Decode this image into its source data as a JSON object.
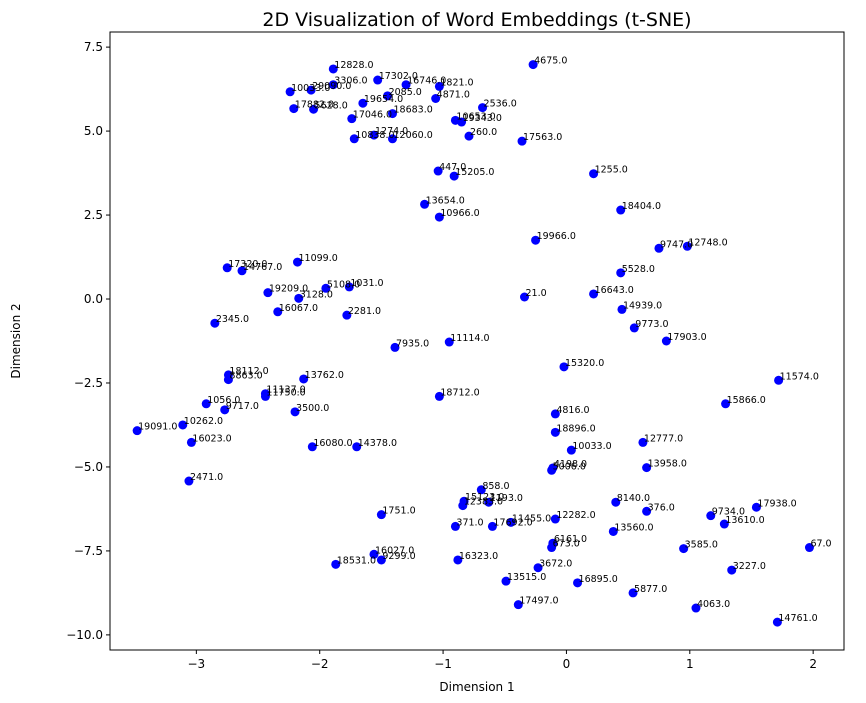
{
  "chart_data": {
    "type": "scatter",
    "title": "2D Visualization of Word Embeddings (t-SNE)",
    "xlabel": "Dimension 1",
    "ylabel": "Dimension 2",
    "xlim": [
      -3.7,
      2.25
    ],
    "ylim": [
      -10.45,
      7.95
    ],
    "x_ticks": [
      -3,
      -2,
      -1,
      0,
      1,
      2
    ],
    "x_tick_labels": [
      "−3",
      "−2",
      "−1",
      "0",
      "1",
      "2"
    ],
    "y_ticks": [
      -10.0,
      -7.5,
      -5.0,
      -2.5,
      0.0,
      2.5,
      5.0,
      7.5
    ],
    "y_tick_labels": [
      "−10.0",
      "−7.5",
      "−5.0",
      "−2.5",
      "0.0",
      "2.5",
      "5.0",
      "7.5"
    ],
    "grid": false,
    "marker_color": "#0000ff",
    "points": [
      {
        "x": -1.89,
        "y": 6.85,
        "label": "12828.0"
      },
      {
        "x": -0.27,
        "y": 6.98,
        "label": "4675.0"
      },
      {
        "x": -1.53,
        "y": 6.52,
        "label": "17302.0"
      },
      {
        "x": -1.3,
        "y": 6.38,
        "label": "16746.0"
      },
      {
        "x": -1.03,
        "y": 6.33,
        "label": "1821.0"
      },
      {
        "x": -1.89,
        "y": 6.38,
        "label": "3306.0"
      },
      {
        "x": -2.07,
        "y": 6.22,
        "label": "29090.0"
      },
      {
        "x": -2.24,
        "y": 6.17,
        "label": "10033.0"
      },
      {
        "x": -1.45,
        "y": 6.05,
        "label": "2085.0"
      },
      {
        "x": -1.06,
        "y": 5.97,
        "label": "4871.0"
      },
      {
        "x": -1.65,
        "y": 5.83,
        "label": "19654.0"
      },
      {
        "x": -0.68,
        "y": 5.7,
        "label": "2536.0"
      },
      {
        "x": -2.21,
        "y": 5.67,
        "label": "17882.0"
      },
      {
        "x": -2.05,
        "y": 5.65,
        "label": "5628.0"
      },
      {
        "x": -1.41,
        "y": 5.52,
        "label": "18683.0"
      },
      {
        "x": -1.74,
        "y": 5.37,
        "label": "17046.0"
      },
      {
        "x": -0.9,
        "y": 5.32,
        "label": "10653.0"
      },
      {
        "x": -0.85,
        "y": 5.27,
        "label": "19343.0"
      },
      {
        "x": -1.56,
        "y": 4.88,
        "label": "1274.0"
      },
      {
        "x": -1.72,
        "y": 4.77,
        "label": "10838.0"
      },
      {
        "x": -1.41,
        "y": 4.77,
        "label": "12060.0"
      },
      {
        "x": -0.79,
        "y": 4.85,
        "label": "260.0"
      },
      {
        "x": -0.36,
        "y": 4.7,
        "label": "17563.0"
      },
      {
        "x": -1.04,
        "y": 3.81,
        "label": "447.0"
      },
      {
        "x": -0.91,
        "y": 3.66,
        "label": "15205.0"
      },
      {
        "x": 0.22,
        "y": 3.73,
        "label": "1255.0"
      },
      {
        "x": -1.15,
        "y": 2.82,
        "label": "13654.0"
      },
      {
        "x": -1.03,
        "y": 2.44,
        "label": "10966.0"
      },
      {
        "x": 0.44,
        "y": 2.65,
        "label": "18404.0"
      },
      {
        "x": -0.25,
        "y": 1.75,
        "label": "19966.0"
      },
      {
        "x": 0.75,
        "y": 1.51,
        "label": "9747.0"
      },
      {
        "x": 0.98,
        "y": 1.57,
        "label": "12748.0"
      },
      {
        "x": -2.18,
        "y": 1.1,
        "label": "11099.0"
      },
      {
        "x": -2.75,
        "y": 0.93,
        "label": "17320.0"
      },
      {
        "x": -2.63,
        "y": 0.84,
        "label": "14767.0"
      },
      {
        "x": 0.44,
        "y": 0.78,
        "label": "5528.0"
      },
      {
        "x": -1.95,
        "y": 0.32,
        "label": "5108.0"
      },
      {
        "x": -1.76,
        "y": 0.36,
        "label": "1031.0"
      },
      {
        "x": -2.42,
        "y": 0.19,
        "label": "19209.0"
      },
      {
        "x": 0.22,
        "y": 0.15,
        "label": "16643.0"
      },
      {
        "x": -0.34,
        "y": 0.06,
        "label": "21.0"
      },
      {
        "x": -2.17,
        "y": 0.02,
        "label": "3128.0"
      },
      {
        "x": 0.45,
        "y": -0.31,
        "label": "14939.0"
      },
      {
        "x": -2.34,
        "y": -0.38,
        "label": "16067.0"
      },
      {
        "x": -1.78,
        "y": -0.48,
        "label": "2281.0"
      },
      {
        "x": -2.85,
        "y": -0.72,
        "label": "2345.0"
      },
      {
        "x": 0.55,
        "y": -0.86,
        "label": "9773.0"
      },
      {
        "x": 0.81,
        "y": -1.25,
        "label": "17903.0"
      },
      {
        "x": -0.95,
        "y": -1.28,
        "label": "11114.0"
      },
      {
        "x": -1.39,
        "y": -1.44,
        "label": "7935.0"
      },
      {
        "x": -2.74,
        "y": -2.26,
        "label": "18112.0"
      },
      {
        "x": -2.74,
        "y": -2.4,
        "label": "8863.0"
      },
      {
        "x": -2.13,
        "y": -2.38,
        "label": "13762.0"
      },
      {
        "x": -0.02,
        "y": -2.02,
        "label": "15320.0"
      },
      {
        "x": 1.72,
        "y": -2.42,
        "label": "11574.0"
      },
      {
        "x": -2.44,
        "y": -2.82,
        "label": "11137.0"
      },
      {
        "x": -2.44,
        "y": -2.9,
        "label": "11750.0"
      },
      {
        "x": -1.03,
        "y": -2.9,
        "label": "18712.0"
      },
      {
        "x": -2.92,
        "y": -3.12,
        "label": "1056.0"
      },
      {
        "x": -2.77,
        "y": -3.3,
        "label": "9717.0"
      },
      {
        "x": 1.29,
        "y": -3.12,
        "label": "15866.0"
      },
      {
        "x": -2.2,
        "y": -3.36,
        "label": "3500.0"
      },
      {
        "x": -0.09,
        "y": -3.42,
        "label": "4816.0"
      },
      {
        "x": -3.11,
        "y": -3.75,
        "label": "10262.0"
      },
      {
        "x": -3.48,
        "y": -3.92,
        "label": "19091.0"
      },
      {
        "x": -0.09,
        "y": -3.97,
        "label": "18896.0"
      },
      {
        "x": 0.62,
        "y": -4.27,
        "label": "12777.0"
      },
      {
        "x": -3.04,
        "y": -4.27,
        "label": "16023.0"
      },
      {
        "x": -2.06,
        "y": -4.4,
        "label": "16080.0"
      },
      {
        "x": -1.7,
        "y": -4.4,
        "label": "14378.0"
      },
      {
        "x": 0.04,
        "y": -4.5,
        "label": "10033.0"
      },
      {
        "x": -0.11,
        "y": -5.03,
        "label": "4198.0"
      },
      {
        "x": -0.12,
        "y": -5.1,
        "label": "5006.0"
      },
      {
        "x": 0.65,
        "y": -5.02,
        "label": "13958.0"
      },
      {
        "x": -3.06,
        "y": -5.42,
        "label": "2471.0"
      },
      {
        "x": -0.69,
        "y": -5.68,
        "label": "858.0"
      },
      {
        "x": -0.83,
        "y": -6.02,
        "label": "15123.0"
      },
      {
        "x": -0.84,
        "y": -6.15,
        "label": "12383.0"
      },
      {
        "x": -0.63,
        "y": -6.05,
        "label": "1193.0"
      },
      {
        "x": 0.4,
        "y": -6.05,
        "label": "8140.0"
      },
      {
        "x": 0.65,
        "y": -6.32,
        "label": "376.0"
      },
      {
        "x": 1.54,
        "y": -6.2,
        "label": "17938.0"
      },
      {
        "x": -1.5,
        "y": -6.42,
        "label": "1751.0"
      },
      {
        "x": 1.17,
        "y": -6.45,
        "label": "9734.0"
      },
      {
        "x": -0.09,
        "y": -6.55,
        "label": "12282.0"
      },
      {
        "x": -0.45,
        "y": -6.65,
        "label": "11455.0"
      },
      {
        "x": -0.6,
        "y": -6.77,
        "label": "17692.0"
      },
      {
        "x": -0.9,
        "y": -6.77,
        "label": "371.0"
      },
      {
        "x": 1.28,
        "y": -6.7,
        "label": "13610.0"
      },
      {
        "x": 0.38,
        "y": -6.92,
        "label": "13560.0"
      },
      {
        "x": -0.11,
        "y": -7.27,
        "label": "6161.0"
      },
      {
        "x": -0.12,
        "y": -7.4,
        "label": "673.0"
      },
      {
        "x": 1.97,
        "y": -7.4,
        "label": "67.0"
      },
      {
        "x": 0.95,
        "y": -7.43,
        "label": "3585.0"
      },
      {
        "x": -1.56,
        "y": -7.6,
        "label": "16027.0"
      },
      {
        "x": -1.5,
        "y": -7.77,
        "label": "9299.0"
      },
      {
        "x": -0.88,
        "y": -7.77,
        "label": "16323.0"
      },
      {
        "x": -1.87,
        "y": -7.9,
        "label": "18531.0"
      },
      {
        "x": -0.23,
        "y": -8.0,
        "label": "3672.0"
      },
      {
        "x": 1.34,
        "y": -8.07,
        "label": "3227.0"
      },
      {
        "x": -0.49,
        "y": -8.4,
        "label": "13515.0"
      },
      {
        "x": 0.09,
        "y": -8.45,
        "label": "16895.0"
      },
      {
        "x": 0.54,
        "y": -8.75,
        "label": "5877.0"
      },
      {
        "x": -0.39,
        "y": -9.1,
        "label": "17497.0"
      },
      {
        "x": 1.05,
        "y": -9.2,
        "label": "4063.0"
      },
      {
        "x": 1.71,
        "y": -9.62,
        "label": "14761.0"
      }
    ]
  }
}
